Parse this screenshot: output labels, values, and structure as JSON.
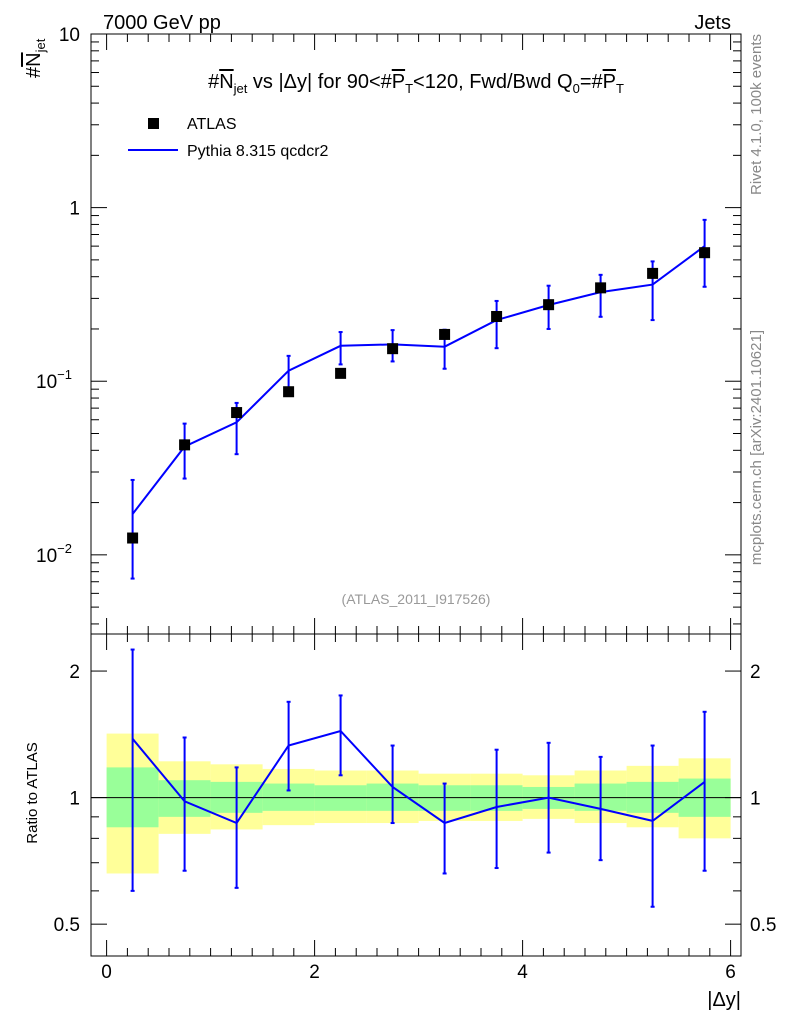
{
  "header": {
    "energy_label": "7000 GeV pp",
    "category_label": "Jets"
  },
  "side_text": {
    "rivet": "Rivet 4.1.0,  100k events",
    "mcplots": "mcplots.cern.ch [arXiv:2401.10621]"
  },
  "analysis_tag": "(ATLAS_2011_I917526)",
  "chart_data": {
    "type": "scatter",
    "title": "#Njet vs |Δy| for 90<#PT<120, Fwd/Bwd Q0=#PT",
    "title_parts": {
      "prefix": "#",
      "njet_main": "N",
      "njet_sub": "jet",
      "middle": " vs |Δy| for 90<#",
      "pt_main": "P",
      "pt_sub": "T",
      "tail": "<120, Fwd/Bwd Q",
      "q_sub": "0",
      "eq": "=#",
      "pt2_main": "P",
      "pt2_sub": "T"
    },
    "ylabel_parts": {
      "prefix": "#",
      "main": "N",
      "sub": "jet"
    },
    "xlabel": "|Δy|",
    "ratio_ylabel": "Ratio to ATLAS",
    "xlim": [
      -0.15,
      6.1
    ],
    "ylim": [
      0.0035,
      10
    ],
    "yscale": "log",
    "ratio_ylim": [
      0.42,
      2.45
    ],
    "x_ticks": [
      0,
      2,
      4,
      6
    ],
    "x_tick_labels": [
      "0",
      "2",
      "4",
      "6"
    ],
    "y_ticks": [
      0.01,
      0.1,
      1,
      10
    ],
    "y_tick_labels": [
      {
        "base": "10",
        "exp": "−2"
      },
      {
        "base": "10",
        "exp": "−1"
      },
      {
        "base": "1",
        "exp": ""
      },
      {
        "base": "10",
        "exp": ""
      }
    ],
    "ratio_ticks": [
      0.5,
      1,
      2
    ],
    "ratio_tick_labels": [
      "0.5",
      "1",
      "2"
    ],
    "legend": [
      {
        "label": "ATLAS",
        "marker": "square",
        "color": "#000000"
      },
      {
        "label": "Pythia 8.315 qcdcr2",
        "marker": "line",
        "color": "#0000ff"
      }
    ],
    "legend_position": "top-left",
    "bins": [
      [
        0,
        0.5
      ],
      [
        0.5,
        1
      ],
      [
        1,
        1.5
      ],
      [
        1.5,
        2
      ],
      [
        2,
        2.5
      ],
      [
        2.5,
        3
      ],
      [
        3,
        3.5
      ],
      [
        3.5,
        4
      ],
      [
        4,
        4.5
      ],
      [
        4.5,
        5
      ],
      [
        5,
        5.5
      ],
      [
        5.5,
        6
      ]
    ],
    "x": [
      0.25,
      0.75,
      1.25,
      1.75,
      2.25,
      2.75,
      3.25,
      3.75,
      4.25,
      4.75,
      5.25,
      5.75
    ],
    "series": [
      {
        "name": "ATLAS",
        "color": "#000000",
        "values": [
          0.0125,
          0.043,
          0.066,
          0.087,
          0.111,
          0.154,
          0.186,
          0.236,
          0.276,
          0.345,
          0.418,
          0.55
        ]
      },
      {
        "name": "Pythia 8.315 qcdcr2",
        "color": "#0000ff",
        "values": [
          0.0172,
          0.042,
          0.058,
          0.115,
          0.16,
          0.163,
          0.158,
          0.225,
          0.275,
          0.326,
          0.36,
          0.6
        ],
        "err_low": [
          0.0073,
          0.0275,
          0.038,
          0.09,
          0.125,
          0.13,
          0.118,
          0.155,
          0.2,
          0.235,
          0.225,
          0.35
        ],
        "err_high": [
          0.027,
          0.057,
          0.075,
          0.14,
          0.192,
          0.197,
          0.198,
          0.29,
          0.355,
          0.41,
          0.49,
          0.85
        ]
      }
    ],
    "ratio": {
      "values": [
        1.38,
        0.98,
        0.87,
        1.33,
        1.44,
        1.06,
        0.87,
        0.95,
        1.0,
        0.94,
        0.88,
        1.09
      ],
      "err_low": [
        0.6,
        0.67,
        0.61,
        1.04,
        1.13,
        0.87,
        0.66,
        0.68,
        0.74,
        0.71,
        0.55,
        0.67
      ],
      "err_high": [
        2.25,
        1.39,
        1.18,
        1.69,
        1.75,
        1.33,
        1.08,
        1.3,
        1.35,
        1.25,
        1.33,
        1.6
      ],
      "band_inner_low": [
        0.85,
        0.9,
        0.92,
        0.93,
        0.93,
        0.93,
        0.93,
        0.93,
        0.94,
        0.93,
        0.92,
        0.9
      ],
      "band_inner_high": [
        1.18,
        1.1,
        1.09,
        1.08,
        1.07,
        1.08,
        1.07,
        1.07,
        1.06,
        1.08,
        1.09,
        1.11
      ],
      "band_outer_low": [
        0.66,
        0.82,
        0.84,
        0.86,
        0.87,
        0.87,
        0.88,
        0.88,
        0.89,
        0.87,
        0.85,
        0.8
      ],
      "band_outer_high": [
        1.42,
        1.22,
        1.2,
        1.17,
        1.16,
        1.16,
        1.14,
        1.14,
        1.13,
        1.16,
        1.19,
        1.24
      ],
      "inner_color": "#99ff99",
      "outer_color": "#ffff99"
    }
  }
}
